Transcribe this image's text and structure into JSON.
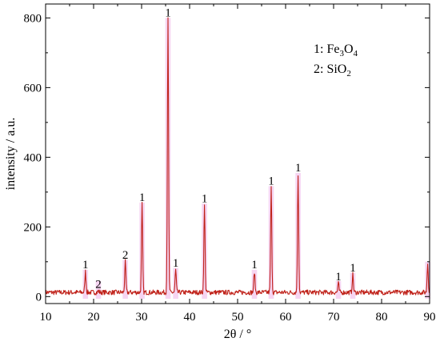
{
  "chart_data": {
    "type": "line",
    "xlabel": "2θ / °",
    "ylabel": "intensity / a.u.",
    "xlim": [
      10,
      90
    ],
    "ylim": [
      -20,
      840
    ],
    "xticks": [
      10,
      20,
      30,
      40,
      50,
      60,
      70,
      80,
      90
    ],
    "yticks": [
      0,
      200,
      400,
      600,
      800
    ],
    "grid": false,
    "baseline": 12,
    "colors": {
      "line": "#c0221a",
      "highlight": "#f3c7ee",
      "axis": "#000000"
    },
    "legend": {
      "placement": "top-right",
      "entries": [
        {
          "key": "1",
          "separator": ": ",
          "parts": [
            {
              "t": "Fe",
              "s": false
            },
            {
              "t": "3",
              "s": true
            },
            {
              "t": "O",
              "s": false
            },
            {
              "t": "4",
              "s": true
            }
          ]
        },
        {
          "key": "2",
          "separator": ": ",
          "parts": [
            {
              "t": "SiO",
              "s": false
            },
            {
              "t": "2",
              "s": true
            }
          ]
        }
      ]
    },
    "peaks": [
      {
        "x": 18.3,
        "y": 72,
        "label": "1"
      },
      {
        "x": 21.0,
        "y": 16,
        "label": "2"
      },
      {
        "x": 26.6,
        "y": 100,
        "label": "2"
      },
      {
        "x": 30.1,
        "y": 265,
        "label": "1"
      },
      {
        "x": 35.5,
        "y": 795,
        "label": "1"
      },
      {
        "x": 37.1,
        "y": 77,
        "label": "1"
      },
      {
        "x": 43.1,
        "y": 262,
        "label": "1"
      },
      {
        "x": 53.5,
        "y": 72,
        "label": "1"
      },
      {
        "x": 57.0,
        "y": 312,
        "label": "1"
      },
      {
        "x": 62.6,
        "y": 350,
        "label": "1"
      },
      {
        "x": 71.0,
        "y": 38,
        "label": "1"
      },
      {
        "x": 74.0,
        "y": 63,
        "label": "1"
      },
      {
        "x": 89.6,
        "y": 95,
        "label": ""
      }
    ]
  }
}
